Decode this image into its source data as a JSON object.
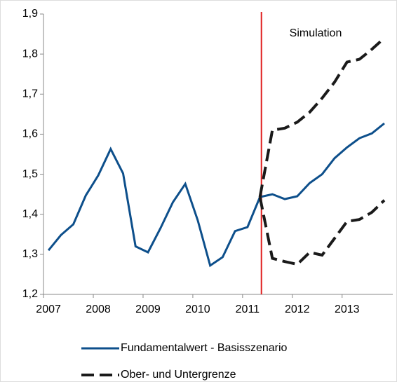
{
  "chart_data": {
    "type": "line",
    "x": [
      2007,
      2007.25,
      2007.5,
      2007.75,
      2008,
      2008.25,
      2008.5,
      2008.75,
      2009,
      2009.25,
      2009.5,
      2009.75,
      2010,
      2010.25,
      2010.5,
      2010.75,
      2011,
      2011.25,
      2011.5,
      2011.75,
      2012,
      2012.25,
      2012.5,
      2012.75,
      2013,
      2013.25,
      2013.5,
      2013.75
    ],
    "series": [
      {
        "name": "Fundamentalwert - Basisszenario",
        "color": "#0d4f8b",
        "dash": false,
        "values": [
          1.31,
          1.348,
          1.375,
          1.447,
          1.497,
          1.563,
          1.502,
          1.32,
          1.305,
          1.365,
          1.43,
          1.476,
          1.385,
          1.272,
          1.293,
          1.358,
          1.368,
          1.443,
          1.45,
          1.438,
          1.445,
          1.478,
          1.5,
          1.54,
          1.567,
          1.59,
          1.602,
          1.627
        ]
      },
      {
        "name": "Ober- und Untergrenze",
        "color": "#1a1a1a",
        "dash": true,
        "values": [
          null,
          null,
          null,
          null,
          null,
          null,
          null,
          null,
          null,
          null,
          null,
          null,
          null,
          null,
          null,
          null,
          null,
          1.443,
          1.61,
          1.615,
          1.63,
          1.655,
          1.69,
          1.73,
          1.78,
          1.787,
          1.812,
          1.84
        ],
        "lower": [
          null,
          null,
          null,
          null,
          null,
          null,
          null,
          null,
          null,
          null,
          null,
          null,
          null,
          null,
          null,
          null,
          null,
          1.443,
          1.29,
          1.282,
          1.275,
          1.305,
          1.298,
          1.34,
          1.382,
          1.387,
          1.405,
          1.435
        ]
      }
    ],
    "xlim": [
      2006.9,
      2013.92
    ],
    "ylim": [
      1.2,
      1.9
    ],
    "xticks": [
      2007,
      2008,
      2009,
      2010,
      2011,
      2012,
      2013
    ],
    "yticks": [
      {
        "value": 1.2,
        "label": "1,2"
      },
      {
        "value": 1.3,
        "label": "1,3"
      },
      {
        "value": 1.4,
        "label": "1,4"
      },
      {
        "value": 1.5,
        "label": "1,5"
      },
      {
        "value": 1.6,
        "label": "1,6"
      },
      {
        "value": 1.7,
        "label": "1,7"
      },
      {
        "value": 1.8,
        "label": "1,8"
      },
      {
        "value": 1.9,
        "label": "1,9"
      }
    ],
    "vline": {
      "value": 2011.28,
      "color": "#e02020"
    },
    "annotation": "Simulation",
    "grid": false
  }
}
